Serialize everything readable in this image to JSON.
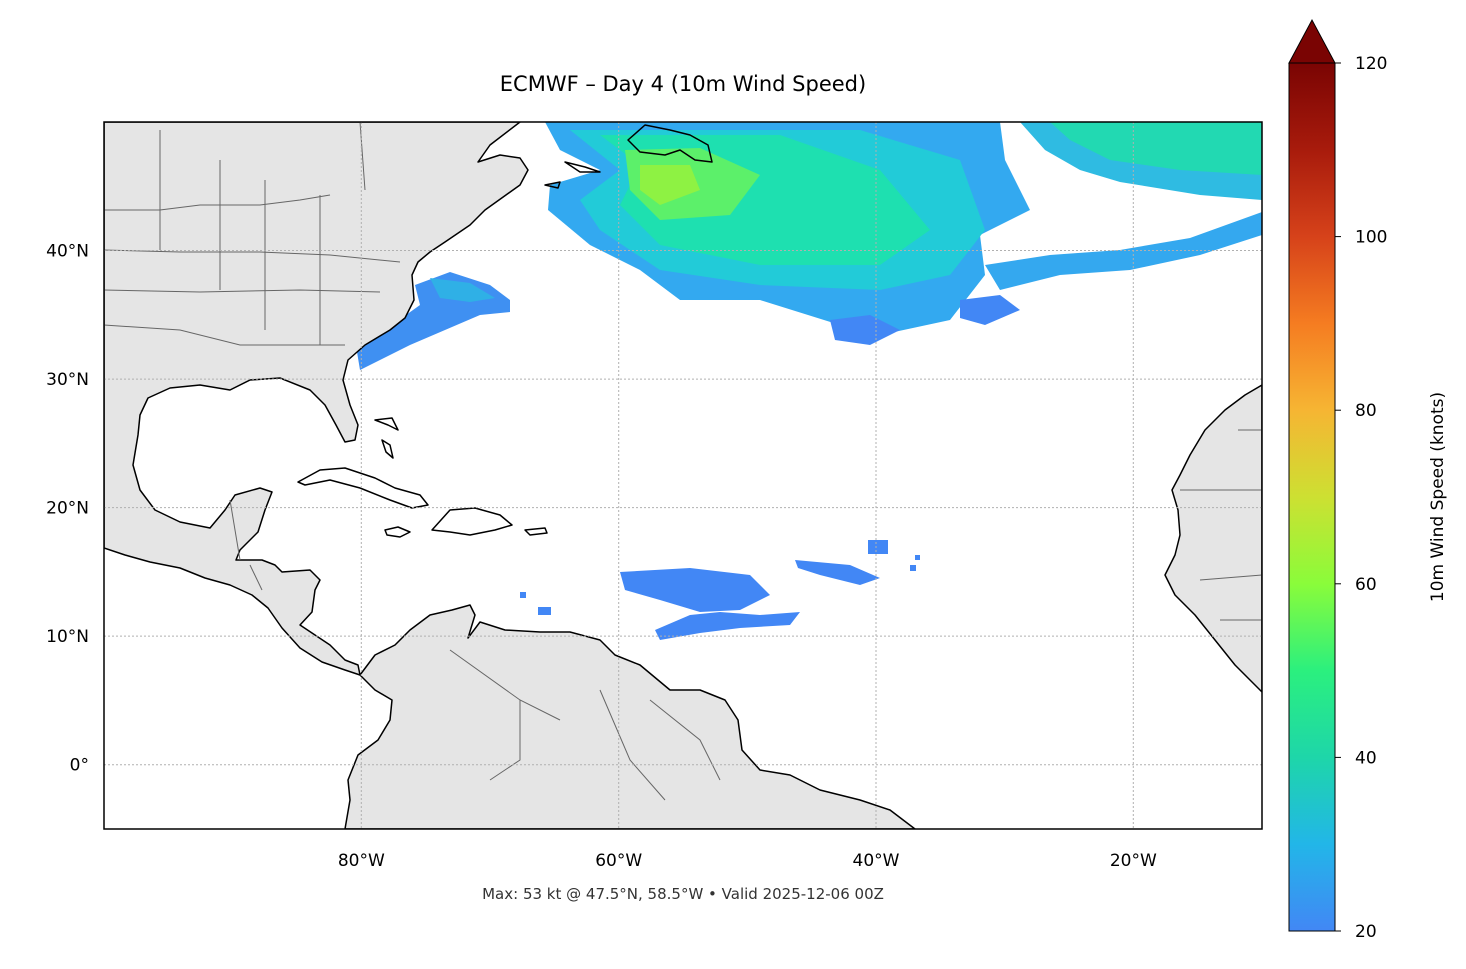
{
  "title": "ECMWF – Day 4 (10m Wind Speed)",
  "footer": "Max: 53 kt @ 47.5°N, 58.5°W • Valid 2025-12-06 00Z",
  "map": {
    "lon_range": [
      -100,
      -10
    ],
    "lat_range": [
      -5,
      50
    ],
    "lon_ticks": [
      -80,
      -60,
      -40,
      -20
    ],
    "lon_tick_labels": [
      "80°W",
      "60°W",
      "40°W",
      "20°W"
    ],
    "lat_ticks": [
      0,
      10,
      20,
      30,
      40
    ],
    "lat_tick_labels": [
      "0°",
      "10°N",
      "20°N",
      "30°N",
      "40°N"
    ],
    "gridlines": true,
    "land_color": "#e5e5e5",
    "coast_color": "#000000",
    "border_color": "#666666",
    "ocean_color": "#ffffff"
  },
  "colorbar": {
    "label": "10m Wind Speed (knots)",
    "min": 20,
    "max": 120,
    "extend": "max",
    "ticks": [
      20,
      40,
      60,
      80,
      100,
      120
    ],
    "tick_labels": [
      "20",
      "40",
      "60",
      "80",
      "100",
      "120"
    ],
    "colormap": [
      "#4287f5",
      "#22b6e8",
      "#1ed6a9",
      "#2bf07e",
      "#8afc3a",
      "#cde032",
      "#f6b533",
      "#f57c21",
      "#d6421a",
      "#a81b0c",
      "#7a0403"
    ]
  }
}
